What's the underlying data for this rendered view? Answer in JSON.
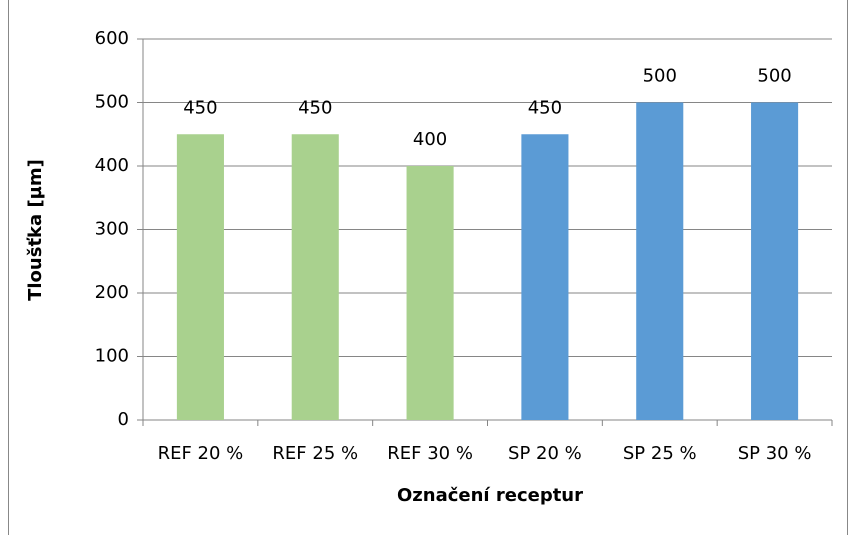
{
  "chart_data": {
    "type": "bar",
    "x_label": "Označení receptur",
    "y_label": "Tloušťka [µm]",
    "categories": [
      "REF 20 %",
      "REF 25 %",
      "REF 30 %",
      "SP 20 %",
      "SP 25 %",
      "SP 30 %"
    ],
    "values": [
      450,
      450,
      400,
      450,
      500,
      500
    ],
    "colors": [
      "#a9d18e",
      "#a9d18e",
      "#a9d18e",
      "#5b9bd5",
      "#5b9bd5",
      "#5b9bd5"
    ],
    "ylim": [
      0,
      600
    ],
    "yticks": [
      0,
      100,
      200,
      300,
      400,
      500,
      600
    ],
    "grid": true
  }
}
